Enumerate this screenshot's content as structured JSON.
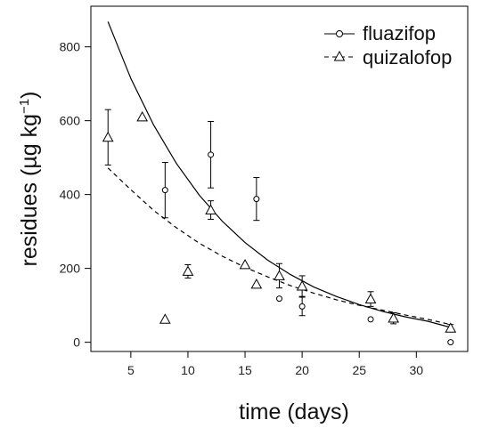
{
  "chart_data": {
    "type": "scatter",
    "title": "",
    "xlabel": "time (days)",
    "ylabel": "residues (µg kg",
    "ylabel_sup": "−1",
    "ylabel_close": ")",
    "xlim": [
      1.5,
      34.5
    ],
    "ylim": [
      -25,
      910
    ],
    "x_ticks": [
      5,
      10,
      15,
      20,
      25,
      30
    ],
    "y_ticks": [
      0,
      200,
      400,
      600,
      800
    ],
    "legend_position": "top-right",
    "series": [
      {
        "name": "fluazifop",
        "marker": "circle",
        "line": "solid",
        "color": "#000000",
        "points": [
          {
            "x": 8,
            "y": 412,
            "err": 75
          },
          {
            "x": 12,
            "y": 508,
            "err": 90
          },
          {
            "x": 16,
            "y": 388,
            "err": 58
          },
          {
            "x": 18,
            "y": 118,
            "err": 0
          },
          {
            "x": 20,
            "y": 97,
            "err": 25
          },
          {
            "x": 26,
            "y": 62,
            "err": 0
          },
          {
            "x": 33,
            "y": 0,
            "err": 0
          }
        ],
        "fit": {
          "x": [
            3,
            5,
            7,
            9,
            11,
            13,
            15,
            17,
            19,
            21,
            23,
            25,
            27,
            29,
            31,
            33
          ],
          "y": [
            868,
            714,
            588,
            484,
            398,
            328,
            270,
            222,
            183,
            150,
            124,
            102,
            84,
            69,
            57,
            40
          ]
        }
      },
      {
        "name": "quizalofop",
        "marker": "triangle",
        "line": "dashed",
        "color": "#000000",
        "points": [
          {
            "x": 3,
            "y": 555,
            "err": 75
          },
          {
            "x": 6,
            "y": 610,
            "err": 0
          },
          {
            "x": 8,
            "y": 62,
            "err": 0
          },
          {
            "x": 10,
            "y": 192,
            "err": 18
          },
          {
            "x": 12,
            "y": 358,
            "err": 25
          },
          {
            "x": 15,
            "y": 210,
            "err": 0
          },
          {
            "x": 16,
            "y": 157,
            "err": 0
          },
          {
            "x": 18,
            "y": 180,
            "err": 33
          },
          {
            "x": 20,
            "y": 152,
            "err": 28
          },
          {
            "x": 26,
            "y": 117,
            "err": 20
          },
          {
            "x": 28,
            "y": 65,
            "err": 15
          },
          {
            "x": 33,
            "y": 38,
            "err": 10
          }
        ],
        "fit": {
          "x": [
            3,
            5,
            7,
            9,
            11,
            13,
            15,
            17,
            19,
            21,
            23,
            25,
            27,
            29,
            31,
            33
          ],
          "y": [
            472,
            413,
            357,
            310,
            268,
            233,
            203,
            177,
            153,
            133,
            115,
            100,
            87,
            74,
            62,
            48
          ]
        }
      }
    ]
  }
}
